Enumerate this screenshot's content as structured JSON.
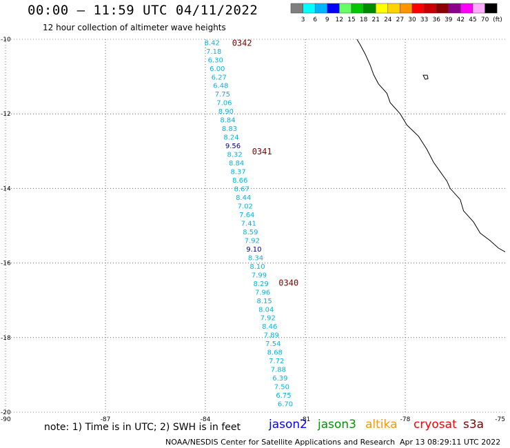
{
  "header": {
    "title": "00:00 – 11:59 UTC 04/11/2022",
    "subtitle": "12 hour collection of altimeter wave heights"
  },
  "color_scale": {
    "labels": [
      "3",
      "6",
      "9",
      "12",
      "15",
      "18",
      "21",
      "24",
      "27",
      "30",
      "33",
      "36",
      "39",
      "42",
      "45",
      "70"
    ],
    "unit": "(ft)",
    "colors": [
      "#7f7f7f",
      "#00ffff",
      "#00b4ff",
      "#0000ff",
      "#66ff66",
      "#00c800",
      "#008c00",
      "#ffff00",
      "#ffd200",
      "#ff9600",
      "#ff0000",
      "#c80000",
      "#8b0000",
      "#8b008b",
      "#ff00ff",
      "#ffaaff",
      "#000000"
    ]
  },
  "axes": {
    "lon_ticks": [
      "-90",
      "-87",
      "-84",
      "-81",
      "-78",
      "-75"
    ],
    "lat_ticks": [
      "-10",
      "-12",
      "-14",
      "-16",
      "-18",
      "-20"
    ],
    "lon_range": [
      -90,
      -75
    ],
    "lat_range": [
      -20,
      -10
    ]
  },
  "track": {
    "color": "#00b4e6",
    "highlight_color": "#000080",
    "lon_start": -83.8,
    "lon_end": -81.6,
    "lat_start": -10.08,
    "lat_end": -19.77,
    "values": [
      "8.42",
      "7.18",
      "6.30",
      "6.00",
      "6.27",
      "6.48",
      "7.75",
      "7.06",
      "8.90",
      "8.84",
      "8.83",
      "8.24",
      "9.56",
      "8.32",
      "8.84",
      "8.37",
      "8.66",
      "8.67",
      "8.44",
      "7.02",
      "7.64",
      "7.41",
      "8.59",
      "7.92",
      "9.10",
      "8.34",
      "8.10",
      "7.99",
      "8.29",
      "7.96",
      "8.15",
      "8.04",
      "7.92",
      "8.46",
      "7.89",
      "7.54",
      "8.68",
      "7.72",
      "7.88",
      "6.39",
      "7.50",
      "6.75",
      "6.70"
    ],
    "highlight_index": [
      12,
      24
    ]
  },
  "time_labels": [
    {
      "text": "0342",
      "lon": -83.2,
      "lat": -10.08
    },
    {
      "text": "0341",
      "lon": -82.6,
      "lat": -12.99
    },
    {
      "text": "0340",
      "lon": -81.8,
      "lat": -16.52
    }
  ],
  "time_label_color": "#800000",
  "coastline_color": "#000000",
  "note": "note:  1) Time is in UTC;  2) SWH is in feet",
  "satellites": [
    {
      "name": "jason2",
      "color": "#0000ff"
    },
    {
      "name": "jason3",
      "color": "#009600"
    },
    {
      "name": "altika",
      "color": "#ff9600"
    },
    {
      "name": "cryosat",
      "color": "#ff0000"
    },
    {
      "name": "s3a",
      "color": "#800000"
    }
  ],
  "footer": {
    "credit": "NOAA/NESDIS Center for Satellite Applications and Research",
    "date": "Apr 13 08:29:11 UTC 2022"
  }
}
